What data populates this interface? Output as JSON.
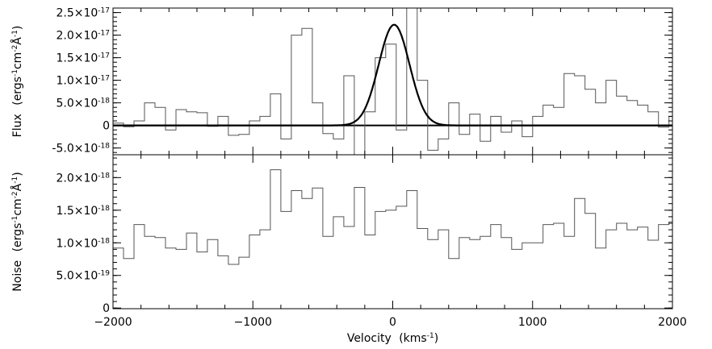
{
  "chart_data": [
    {
      "type": "line",
      "panel": "top",
      "ylabel_main": "Flux",
      "ylabel_units": "(ergs",
      "ylabel_units_parts": [
        "-1",
        "cm",
        "-2",
        "Å",
        "-1",
        ")"
      ],
      "xlim": [
        -2000,
        2000
      ],
      "ylim": [
        -6.5e-18,
        2.6e-17
      ],
      "yticks": [
        {
          "value": -5e-18,
          "mant": "-5.0×10",
          "exp": "-18"
        },
        {
          "value": 0,
          "mant": "0",
          "exp": ""
        },
        {
          "value": 5e-18,
          "mant": "5.0×10",
          "exp": "-18"
        },
        {
          "value": 1e-17,
          "mant": "1.0×10",
          "exp": "-17"
        },
        {
          "value": 1.5e-17,
          "mant": "1.5×10",
          "exp": "-17"
        },
        {
          "value": 2e-17,
          "mant": "2.0×10",
          "exp": "-17"
        },
        {
          "value": 2.5e-17,
          "mant": "2.5×10",
          "exp": "-17"
        }
      ],
      "series": [
        {
          "kind": "step",
          "color": "#555555",
          "x": [
            -2000,
            -1925,
            -1850,
            -1775,
            -1700,
            -1625,
            -1550,
            -1475,
            -1400,
            -1325,
            -1250,
            -1175,
            -1100,
            -1025,
            -950,
            -875,
            -800,
            -725,
            -650,
            -575,
            -500,
            -425,
            -350,
            -275,
            -200,
            -125,
            -50,
            25,
            100,
            175,
            250,
            325,
            400,
            475,
            550,
            625,
            700,
            775,
            850,
            925,
            1000,
            1075,
            1150,
            1225,
            1300,
            1375,
            1450,
            1525,
            1600,
            1675,
            1750,
            1825,
            1900,
            1975
          ],
          "y": [
            5e-19,
            -3e-19,
            1e-18,
            5e-18,
            4e-18,
            -1e-18,
            3.5e-18,
            3e-18,
            2.8e-18,
            -2e-19,
            2e-18,
            -2.2e-18,
            -2e-18,
            1e-18,
            2e-18,
            7e-18,
            -3e-18,
            2e-17,
            2.15e-17,
            5e-18,
            -1.8e-18,
            -3e-18,
            1.1e-17,
            -6.5e-18,
            3e-18,
            1.5e-17,
            1.8e-17,
            -1e-18,
            2.6e-17,
            1e-17,
            -5.5e-18,
            -3e-18,
            5e-18,
            -2e-18,
            2.5e-18,
            -3.5e-18,
            2e-18,
            -1.5e-18,
            1e-18,
            -2.5e-18,
            2e-18,
            4.5e-18,
            4e-18,
            1.15e-17,
            1.1e-17,
            8e-18,
            5e-18,
            1e-17,
            6.5e-18,
            5.5e-18,
            4.5e-18,
            3e-18,
            -4e-19,
            2e-18
          ]
        },
        {
          "kind": "gaussian",
          "color": "#000000",
          "amplitude": 2.23e-17,
          "center": 10,
          "sigma": 110
        }
      ]
    },
    {
      "type": "line",
      "panel": "bottom",
      "ylabel_main": "Noise",
      "ylabel_units": "(ergs",
      "ylabel_units_parts": [
        "-1",
        "cm",
        "-2",
        "Å",
        "-1",
        ")"
      ],
      "xlim": [
        -2000,
        2000
      ],
      "ylim": [
        -1e-20,
        2.35e-18
      ],
      "xticks": [
        -2000,
        -1000,
        0,
        1000,
        2000
      ],
      "xlabel_main": "Velocity",
      "xlabel_units": "(kms",
      "xlabel_units_parts": [
        "-1",
        ")"
      ],
      "yticks": [
        {
          "value": 0,
          "mant": "0",
          "exp": ""
        },
        {
          "value": 5e-19,
          "mant": "5.0×10",
          "exp": "-19"
        },
        {
          "value": 1e-18,
          "mant": "1.0×10",
          "exp": "-18"
        },
        {
          "value": 1.5e-18,
          "mant": "1.5×10",
          "exp": "-18"
        },
        {
          "value": 2e-18,
          "mant": "2.0×10",
          "exp": "-18"
        }
      ],
      "series": [
        {
          "kind": "step",
          "color": "#555555",
          "x": [
            -2000,
            -1925,
            -1850,
            -1775,
            -1700,
            -1625,
            -1550,
            -1475,
            -1400,
            -1325,
            -1250,
            -1175,
            -1100,
            -1025,
            -950,
            -875,
            -800,
            -725,
            -650,
            -575,
            -500,
            -425,
            -350,
            -275,
            -200,
            -125,
            -50,
            25,
            100,
            175,
            250,
            325,
            400,
            475,
            550,
            625,
            700,
            775,
            850,
            925,
            1000,
            1075,
            1150,
            1225,
            1300,
            1375,
            1450,
            1525,
            1600,
            1675,
            1750,
            1825,
            1900,
            1975
          ],
          "y": [
            9.2e-19,
            7.6e-19,
            1.28e-18,
            1.1e-18,
            1.08e-18,
            9.2e-19,
            9e-19,
            1.15e-18,
            8.6e-19,
            1.05e-18,
            8e-19,
            6.7e-19,
            7.8e-19,
            1.12e-18,
            1.2e-18,
            2.12e-18,
            1.48e-18,
            1.8e-18,
            1.68e-18,
            1.84e-18,
            1.1e-18,
            1.4e-18,
            1.25e-18,
            1.85e-18,
            1.12e-18,
            1.48e-18,
            1.5e-18,
            1.56e-18,
            1.8e-18,
            1.22e-18,
            1.05e-18,
            1.2e-18,
            7.6e-19,
            1.08e-18,
            1.05e-18,
            1.1e-18,
            1.28e-18,
            1.08e-18,
            9e-19,
            1e-18,
            1e-18,
            1.28e-18,
            1.3e-18,
            1.1e-18,
            1.68e-18,
            1.45e-18,
            9.2e-19,
            1.2e-18,
            1.3e-18,
            1.2e-18,
            1.24e-18,
            1.04e-18,
            1.28e-18,
            1.32e-18
          ]
        }
      ]
    }
  ]
}
